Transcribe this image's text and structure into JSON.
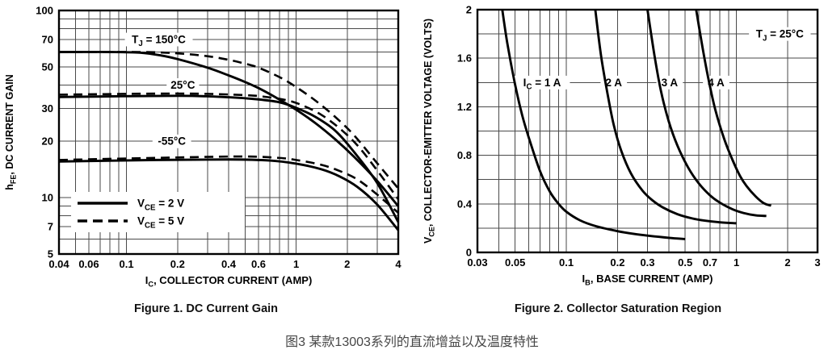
{
  "colors": {
    "ink": "#000000",
    "grid": "#4a4a4a",
    "caption_gray": "#474747",
    "background": "#ffffff"
  },
  "captions": {
    "figure1": "Figure 1. DC Current Gain",
    "figure2": "Figure 2. Collector Saturation Region",
    "chinese": "图3 某款13003系列的直流增益以及温度特性"
  },
  "chart_data": [
    {
      "id": "figure1",
      "type": "line",
      "title": "Figure 1. DC Current Gain",
      "x_axis": {
        "scale": "log",
        "min": 0.04,
        "max": 4,
        "label_parts": [
          {
            "t": "I"
          },
          {
            "t": "C",
            "sub": true
          },
          {
            "t": ", COLLECTOR CURRENT (AMP)"
          }
        ],
        "ticks": [
          {
            "v": 0.04,
            "label": "0.04"
          },
          {
            "v": 0.06,
            "label": "0.06"
          },
          {
            "v": 0.1,
            "label": "0.1"
          },
          {
            "v": 0.2,
            "label": "0.2"
          },
          {
            "v": 0.4,
            "label": "0.4"
          },
          {
            "v": 0.6,
            "label": "0.6"
          },
          {
            "v": 1,
            "label": "1"
          },
          {
            "v": 2,
            "label": "2"
          },
          {
            "v": 4,
            "label": "4"
          }
        ],
        "gridlines": [
          0.05,
          0.06,
          0.07,
          0.08,
          0.09,
          0.1,
          0.2,
          0.3,
          0.4,
          0.5,
          0.6,
          0.7,
          0.8,
          0.9,
          1,
          2,
          3
        ]
      },
      "y_axis": {
        "scale": "log",
        "min": 5,
        "max": 100,
        "label_parts": [
          {
            "t": "h"
          },
          {
            "t": "FE",
            "sub": true
          },
          {
            "t": ", DC CURRENT GAIN"
          }
        ],
        "ticks": [
          {
            "v": 100,
            "label": "100"
          },
          {
            "v": 70,
            "label": "70"
          },
          {
            "v": 50,
            "label": "50"
          },
          {
            "v": 30,
            "label": "30"
          },
          {
            "v": 20,
            "label": "20"
          },
          {
            "v": 10,
            "label": "10"
          },
          {
            "v": 7,
            "label": "7"
          },
          {
            "v": 5,
            "label": "5"
          }
        ],
        "gridlines": [
          6,
          7,
          8,
          9,
          10,
          20,
          30,
          40,
          50,
          60,
          70,
          80,
          90
        ]
      },
      "annotations": [
        {
          "parts": [
            {
              "t": "T"
            },
            {
              "t": "J",
              "sub": true
            },
            {
              "t": " = 150°C"
            }
          ],
          "x": 0.155,
          "y": 70
        },
        {
          "parts": [
            {
              "t": "25°C"
            }
          ],
          "x": 0.215,
          "y": 40
        },
        {
          "parts": [
            {
              "t": "-55°C"
            }
          ],
          "x": 0.185,
          "y": 20
        }
      ],
      "legend": {
        "items": [
          {
            "line": "solid",
            "parts": [
              {
                "t": "V"
              },
              {
                "t": "CE",
                "sub": true
              },
              {
                "t": " = 2 V"
              }
            ]
          },
          {
            "line": "dashed",
            "parts": [
              {
                "t": "V"
              },
              {
                "t": "CE",
                "sub": true
              },
              {
                "t": " = 5 V"
              }
            ]
          }
        ]
      },
      "series": [
        {
          "name": "TJ = 150°C, VCE = 2 V",
          "line": "solid",
          "points": [
            [
              0.04,
              60
            ],
            [
              0.08,
              60
            ],
            [
              0.12,
              59.5
            ],
            [
              0.16,
              57.5
            ],
            [
              0.2,
              55
            ],
            [
              0.3,
              49.5
            ],
            [
              0.4,
              45
            ],
            [
              0.5,
              41.5
            ],
            [
              0.6,
              38.5
            ],
            [
              0.75,
              34.5
            ],
            [
              1,
              29.5
            ],
            [
              1.3,
              25
            ],
            [
              1.7,
              20.5
            ],
            [
              2.2,
              16.5
            ],
            [
              3,
              12.3
            ],
            [
              4,
              9
            ]
          ]
        },
        {
          "name": "TJ = 25°C, VCE = 2 V",
          "line": "solid",
          "points": [
            [
              0.04,
              34.5
            ],
            [
              0.2,
              35
            ],
            [
              0.4,
              34.4
            ],
            [
              0.6,
              33.5
            ],
            [
              0.8,
              32.3
            ],
            [
              1,
              30.2
            ],
            [
              1.3,
              27
            ],
            [
              1.7,
              22.8
            ],
            [
              2.2,
              17.5
            ],
            [
              3,
              12
            ],
            [
              4,
              7.4
            ]
          ]
        },
        {
          "name": "TJ = -55°C, VCE = 2 V",
          "line": "solid",
          "points": [
            [
              0.04,
              15.6
            ],
            [
              0.15,
              15.9
            ],
            [
              0.4,
              16
            ],
            [
              0.7,
              15.8
            ],
            [
              1,
              15.2
            ],
            [
              1.4,
              14.2
            ],
            [
              1.8,
              13
            ],
            [
              2.3,
              11.4
            ],
            [
              3,
              9.2
            ],
            [
              4,
              6.7
            ]
          ]
        },
        {
          "name": "TJ = 150°C, VCE = 5 V",
          "line": "dashed",
          "points": [
            [
              0.04,
              60
            ],
            [
              0.12,
              60
            ],
            [
              0.2,
              59
            ],
            [
              0.3,
              57
            ],
            [
              0.4,
              54.5
            ],
            [
              0.5,
              52
            ],
            [
              0.6,
              49.5
            ],
            [
              0.8,
              44
            ],
            [
              1,
              39
            ],
            [
              1.3,
              33
            ],
            [
              1.7,
              27
            ],
            [
              2.2,
              21.5
            ],
            [
              3,
              15.3
            ],
            [
              4,
              11.2
            ]
          ]
        },
        {
          "name": "TJ = 25°C, VCE = 5 V",
          "line": "dashed",
          "points": [
            [
              0.04,
              35.5
            ],
            [
              0.2,
              36
            ],
            [
              0.5,
              35.3
            ],
            [
              0.7,
              34.3
            ],
            [
              0.9,
              33
            ],
            [
              1.1,
              31
            ],
            [
              1.4,
              27.8
            ],
            [
              1.8,
              23.5
            ],
            [
              2.3,
              19
            ],
            [
              3,
              14
            ],
            [
              4,
              9.8
            ]
          ]
        },
        {
          "name": "TJ = -55°C, VCE = 5 V",
          "line": "dashed",
          "points": [
            [
              0.04,
              15.9
            ],
            [
              0.2,
              16.4
            ],
            [
              0.5,
              16.6
            ],
            [
              0.8,
              16.3
            ],
            [
              1,
              15.9
            ],
            [
              1.4,
              15
            ],
            [
              1.8,
              13.9
            ],
            [
              2.3,
              12.5
            ],
            [
              3,
              10.4
            ],
            [
              4,
              8.3
            ]
          ]
        }
      ]
    },
    {
      "id": "figure2",
      "type": "line",
      "title": "Figure 2. Collector Saturation Region",
      "x_axis": {
        "scale": "log",
        "min": 0.03,
        "max": 3,
        "label_parts": [
          {
            "t": "I"
          },
          {
            "t": "B",
            "sub": true
          },
          {
            "t": ", BASE CURRENT (AMP)"
          }
        ],
        "ticks": [
          {
            "v": 0.03,
            "label": "0.03"
          },
          {
            "v": 0.05,
            "label": "0.05"
          },
          {
            "v": 0.1,
            "label": "0.1"
          },
          {
            "v": 0.2,
            "label": "0.2"
          },
          {
            "v": 0.3,
            "label": "0.3"
          },
          {
            "v": 0.5,
            "label": "0.5"
          },
          {
            "v": 0.7,
            "label": "0.7"
          },
          {
            "v": 1,
            "label": "1"
          },
          {
            "v": 2,
            "label": "2"
          },
          {
            "v": 3,
            "label": "3"
          }
        ],
        "gridlines": [
          0.04,
          0.05,
          0.06,
          0.07,
          0.08,
          0.09,
          0.1,
          0.2,
          0.3,
          0.4,
          0.5,
          0.6,
          0.7,
          0.8,
          0.9,
          1,
          2
        ]
      },
      "y_axis": {
        "scale": "linear",
        "min": 0,
        "max": 2,
        "label_parts": [
          {
            "t": "V"
          },
          {
            "t": "CE",
            "sub": true
          },
          {
            "t": ", COLLECTOR-EMITTER VOLTAGE (VOLTS)"
          }
        ],
        "ticks": [
          {
            "v": 2,
            "label": "2"
          },
          {
            "v": 1.6,
            "label": "1.6"
          },
          {
            "v": 1.2,
            "label": "1.2"
          },
          {
            "v": 0.8,
            "label": "0.8"
          },
          {
            "v": 0.4,
            "label": "0.4"
          },
          {
            "v": 0,
            "label": "0"
          }
        ],
        "gridlines": [
          0.2,
          0.4,
          0.6,
          0.8,
          1.0,
          1.2,
          1.4,
          1.6,
          1.8
        ]
      },
      "annotations": [
        {
          "parts": [
            {
              "t": "I"
            },
            {
              "t": "C",
              "sub": true
            },
            {
              "t": " = 1 A"
            }
          ],
          "x": 0.072,
          "y": 1.4
        },
        {
          "parts": [
            {
              "t": "2 A"
            }
          ],
          "x": 0.19,
          "y": 1.4
        },
        {
          "parts": [
            {
              "t": "3 A"
            }
          ],
          "x": 0.405,
          "y": 1.4
        },
        {
          "parts": [
            {
              "t": "4 A"
            }
          ],
          "x": 0.76,
          "y": 1.4
        },
        {
          "parts": [
            {
              "t": "T"
            },
            {
              "t": "J",
              "sub": true
            },
            {
              "t": " = 25°C"
            }
          ],
          "x": 1.8,
          "y": 1.8
        }
      ],
      "series": [
        {
          "name": "IC = 1 A",
          "line": "solid",
          "points": [
            [
              0.042,
              2.0
            ],
            [
              0.045,
              1.72
            ],
            [
              0.05,
              1.38
            ],
            [
              0.055,
              1.13
            ],
            [
              0.06,
              0.95
            ],
            [
              0.07,
              0.67
            ],
            [
              0.08,
              0.5
            ],
            [
              0.09,
              0.4
            ],
            [
              0.1,
              0.335
            ],
            [
              0.12,
              0.265
            ],
            [
              0.15,
              0.215
            ],
            [
              0.2,
              0.175
            ],
            [
              0.25,
              0.152
            ],
            [
              0.3,
              0.138
            ],
            [
              0.4,
              0.12
            ],
            [
              0.5,
              0.11
            ]
          ]
        },
        {
          "name": "IC = 2 A",
          "line": "solid",
          "points": [
            [
              0.148,
              2.0
            ],
            [
              0.16,
              1.62
            ],
            [
              0.175,
              1.3
            ],
            [
              0.19,
              1.05
            ],
            [
              0.21,
              0.84
            ],
            [
              0.24,
              0.65
            ],
            [
              0.28,
              0.51
            ],
            [
              0.32,
              0.43
            ],
            [
              0.37,
              0.37
            ],
            [
              0.45,
              0.315
            ],
            [
              0.55,
              0.28
            ],
            [
              0.65,
              0.262
            ],
            [
              0.8,
              0.248
            ],
            [
              1.0,
              0.24
            ]
          ]
        },
        {
          "name": "IC = 3 A",
          "line": "solid",
          "points": [
            [
              0.3,
              2.0
            ],
            [
              0.33,
              1.62
            ],
            [
              0.36,
              1.33
            ],
            [
              0.4,
              1.08
            ],
            [
              0.45,
              0.88
            ],
            [
              0.52,
              0.7
            ],
            [
              0.6,
              0.57
            ],
            [
              0.7,
              0.47
            ],
            [
              0.8,
              0.41
            ],
            [
              0.95,
              0.355
            ],
            [
              1.1,
              0.325
            ],
            [
              1.3,
              0.305
            ],
            [
              1.5,
              0.3
            ]
          ]
        },
        {
          "name": "IC = 4 A",
          "line": "solid",
          "points": [
            [
              0.58,
              2.0
            ],
            [
              0.63,
              1.7
            ],
            [
              0.68,
              1.45
            ],
            [
              0.75,
              1.18
            ],
            [
              0.85,
              0.93
            ],
            [
              0.95,
              0.76
            ],
            [
              1.05,
              0.63
            ],
            [
              1.15,
              0.545
            ],
            [
              1.3,
              0.46
            ],
            [
              1.45,
              0.405
            ],
            [
              1.6,
              0.385
            ]
          ]
        }
      ]
    }
  ]
}
